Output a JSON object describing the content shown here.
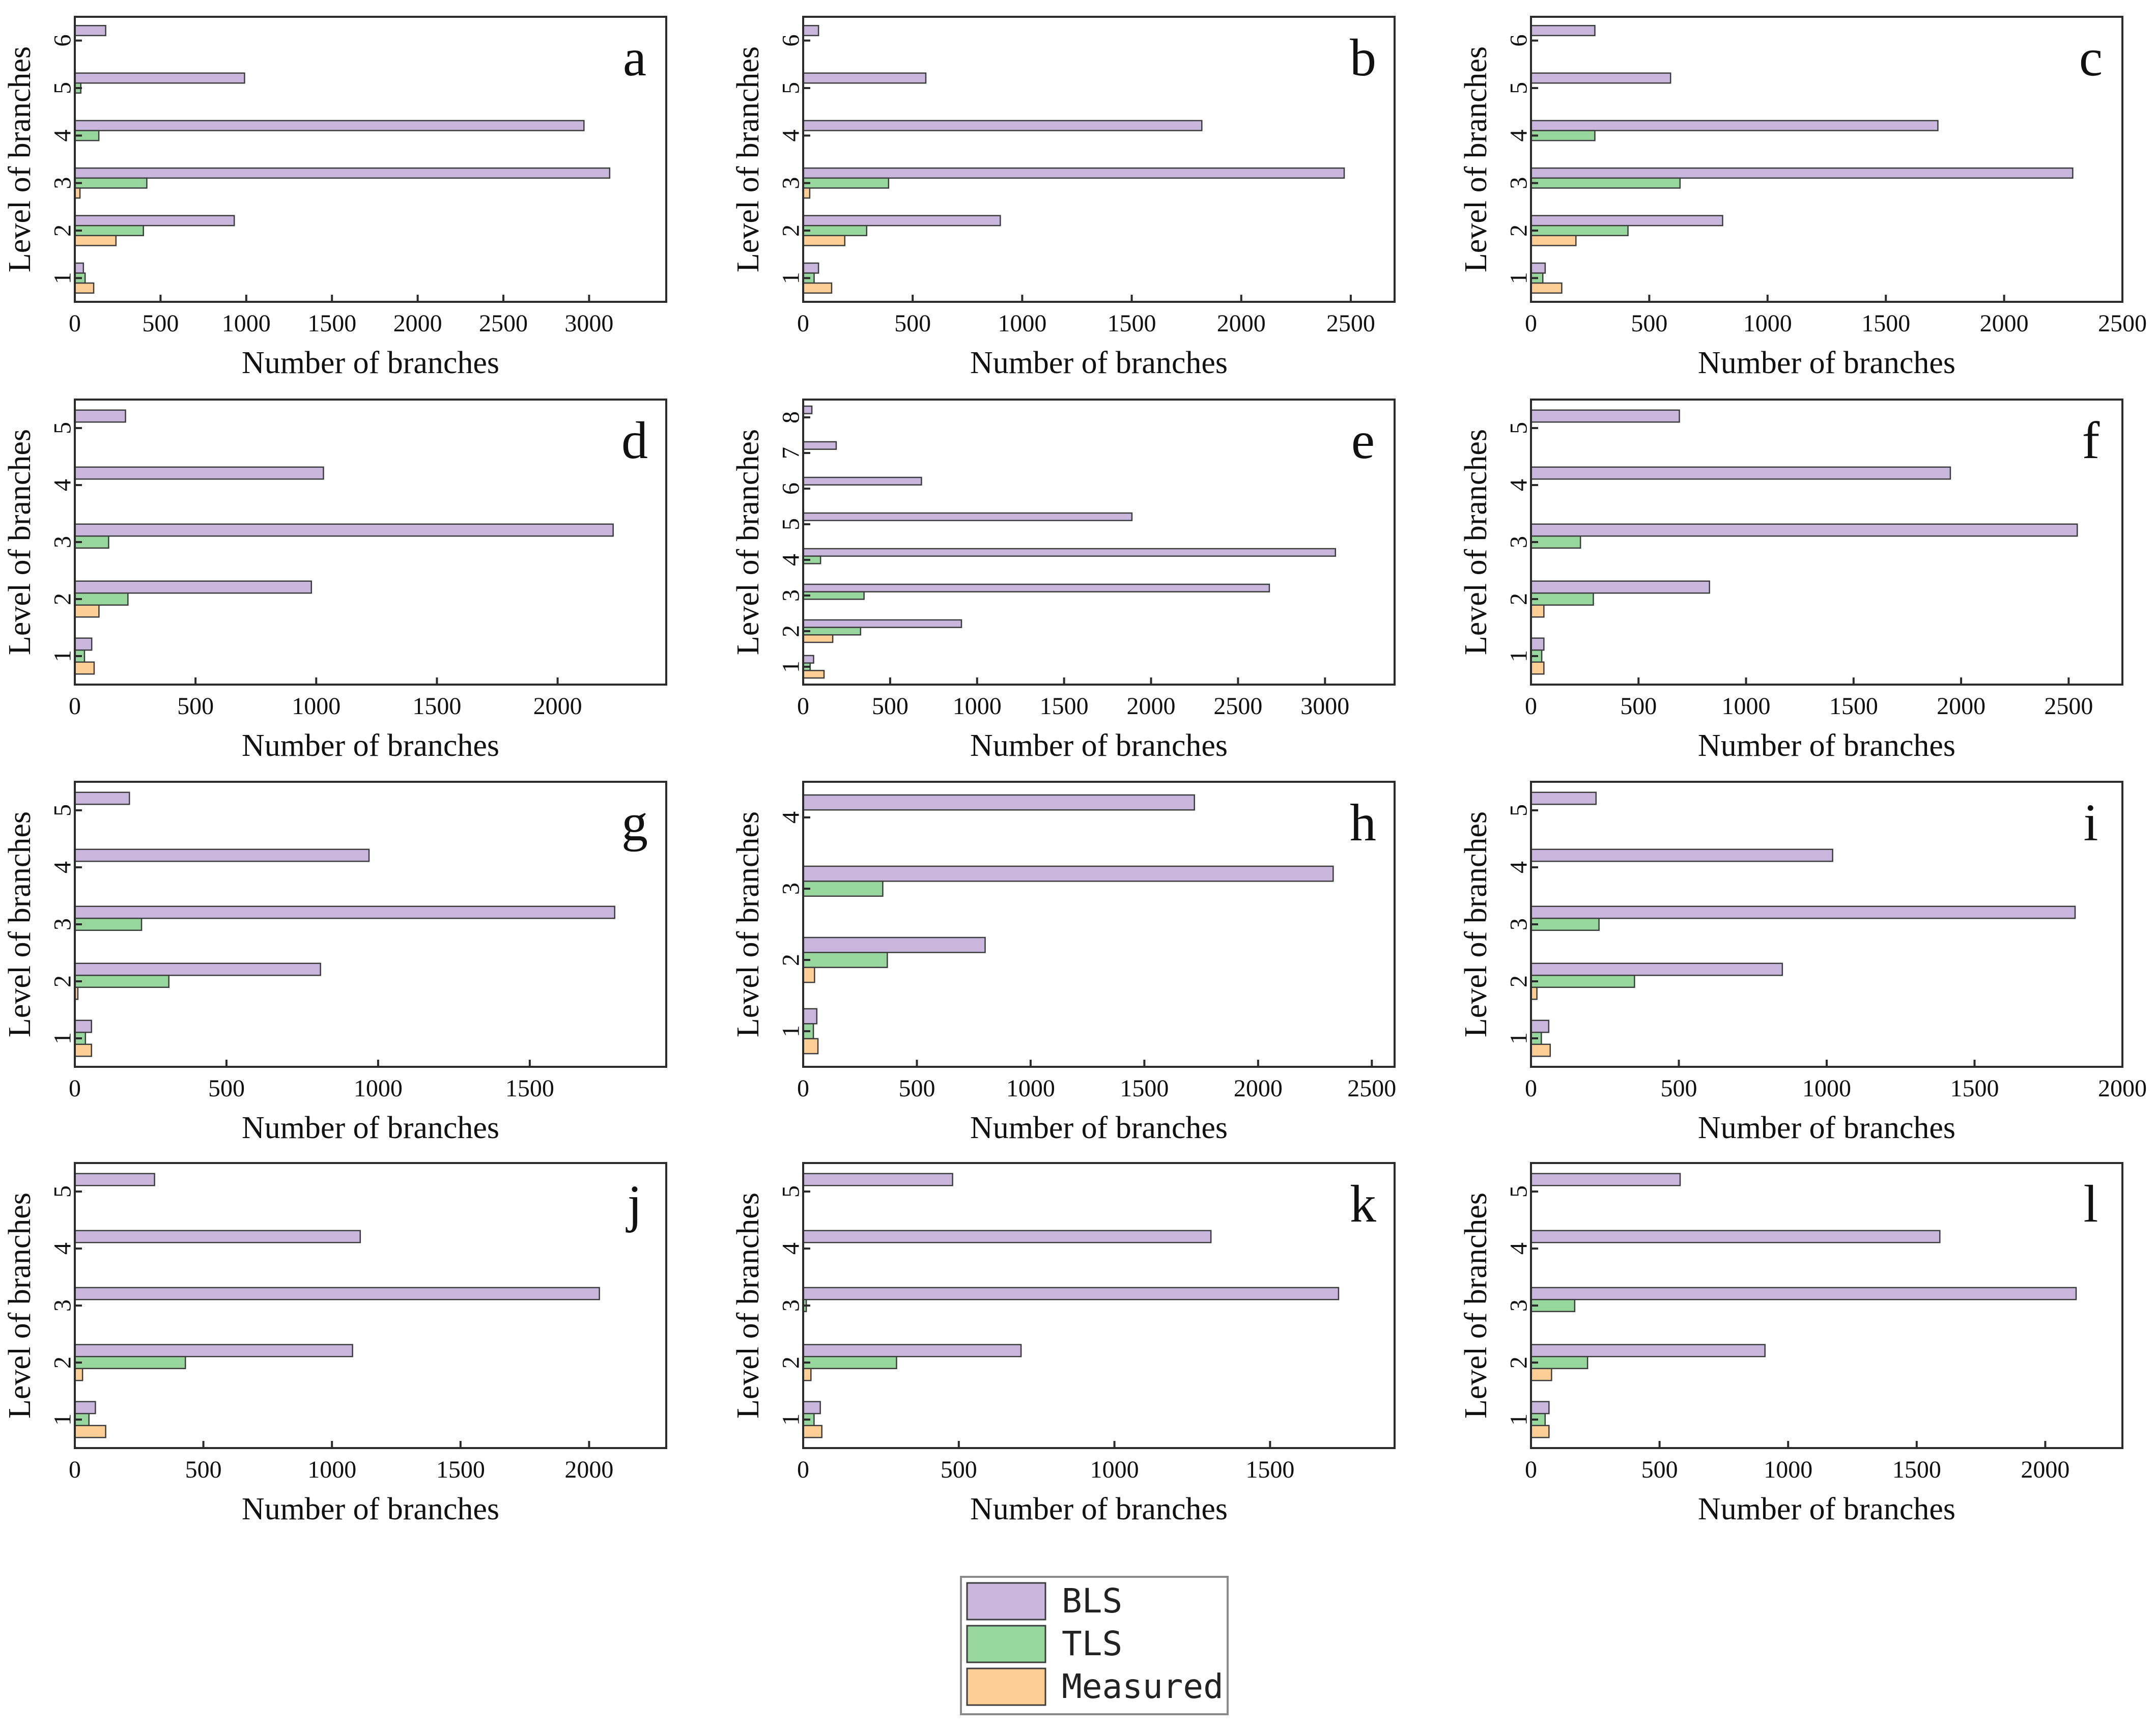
{
  "colors": {
    "BLS": "#c8b6dc",
    "TLS": "#97d69c",
    "Measured": "#fdcf96"
  },
  "legend": {
    "items": [
      "BLS",
      "TLS",
      "Measured"
    ]
  },
  "chart_data": [
    {
      "type": "bar",
      "orientation": "horizontal",
      "panel": "a",
      "title": "",
      "xlabel": "Number of branches",
      "ylabel": "Level of branches",
      "categories": [
        "1",
        "2",
        "3",
        "4",
        "5",
        "6"
      ],
      "xlim": [
        0,
        3450
      ],
      "xticks": [
        0,
        500,
        1000,
        1500,
        2000,
        2500,
        3000
      ],
      "series": [
        {
          "name": "BLS",
          "values": [
            50,
            930,
            3120,
            2970,
            990,
            180
          ]
        },
        {
          "name": "TLS",
          "values": [
            60,
            400,
            420,
            140,
            35,
            0
          ]
        },
        {
          "name": "Measured",
          "values": [
            110,
            240,
            30,
            0,
            0,
            0
          ]
        }
      ]
    },
    {
      "type": "bar",
      "orientation": "horizontal",
      "panel": "b",
      "title": "",
      "xlabel": "Number of branches",
      "ylabel": "Level of branches",
      "categories": [
        "1",
        "2",
        "3",
        "4",
        "5",
        "6"
      ],
      "xlim": [
        0,
        2700
      ],
      "xticks": [
        0,
        500,
        1000,
        1500,
        2000,
        2500
      ],
      "series": [
        {
          "name": "BLS",
          "values": [
            70,
            900,
            2470,
            1820,
            560,
            70
          ]
        },
        {
          "name": "TLS",
          "values": [
            50,
            290,
            390,
            0,
            0,
            0
          ]
        },
        {
          "name": "Measured",
          "values": [
            130,
            190,
            30,
            0,
            0,
            0
          ]
        }
      ]
    },
    {
      "type": "bar",
      "orientation": "horizontal",
      "panel": "c",
      "title": "",
      "xlabel": "Number of branches",
      "ylabel": "Level of branches",
      "categories": [
        "1",
        "2",
        "3",
        "4",
        "5",
        "6"
      ],
      "xlim": [
        0,
        2500
      ],
      "xticks": [
        0,
        500,
        1000,
        1500,
        2000,
        2500
      ],
      "series": [
        {
          "name": "BLS",
          "values": [
            60,
            810,
            2290,
            1720,
            590,
            270
          ]
        },
        {
          "name": "TLS",
          "values": [
            50,
            410,
            630,
            270,
            0,
            0
          ]
        },
        {
          "name": "Measured",
          "values": [
            130,
            190,
            0,
            0,
            0,
            0
          ]
        }
      ]
    },
    {
      "type": "bar",
      "orientation": "horizontal",
      "panel": "d",
      "title": "",
      "xlabel": "Number of branches",
      "ylabel": "Level of branches",
      "categories": [
        "1",
        "2",
        "3",
        "4",
        "5"
      ],
      "xlim": [
        0,
        2450
      ],
      "xticks": [
        0,
        500,
        1000,
        1500,
        2000
      ],
      "series": [
        {
          "name": "BLS",
          "values": [
            70,
            980,
            2230,
            1030,
            210
          ]
        },
        {
          "name": "TLS",
          "values": [
            40,
            220,
            140,
            0,
            0
          ]
        },
        {
          "name": "Measured",
          "values": [
            80,
            100,
            0,
            0,
            0
          ]
        }
      ]
    },
    {
      "type": "bar",
      "orientation": "horizontal",
      "panel": "e",
      "title": "",
      "xlabel": "Number of branches",
      "ylabel": "Level of branches",
      "categories": [
        "1",
        "2",
        "3",
        "4",
        "5",
        "6",
        "7",
        "8"
      ],
      "xlim": [
        0,
        3400
      ],
      "xticks": [
        0,
        500,
        1000,
        1500,
        2000,
        2500,
        3000
      ],
      "series": [
        {
          "name": "BLS",
          "values": [
            60,
            910,
            2680,
            3060,
            1890,
            680,
            190,
            50
          ]
        },
        {
          "name": "TLS",
          "values": [
            40,
            330,
            350,
            100,
            0,
            0,
            0,
            0
          ]
        },
        {
          "name": "Measured",
          "values": [
            120,
            170,
            0,
            0,
            0,
            0,
            0,
            0
          ]
        }
      ]
    },
    {
      "type": "bar",
      "orientation": "horizontal",
      "panel": "f",
      "title": "",
      "xlabel": "Number of branches",
      "ylabel": "Level of branches",
      "categories": [
        "1",
        "2",
        "3",
        "4",
        "5"
      ],
      "xlim": [
        0,
        2750
      ],
      "xticks": [
        0,
        500,
        1000,
        1500,
        2000,
        2500
      ],
      "series": [
        {
          "name": "BLS",
          "values": [
            60,
            830,
            2540,
            1950,
            690
          ]
        },
        {
          "name": "TLS",
          "values": [
            50,
            290,
            230,
            0,
            0
          ]
        },
        {
          "name": "Measured",
          "values": [
            60,
            60,
            0,
            0,
            0
          ]
        }
      ]
    },
    {
      "type": "bar",
      "orientation": "horizontal",
      "panel": "g",
      "title": "",
      "xlabel": "Number of branches",
      "ylabel": "Level of branches",
      "categories": [
        "1",
        "2",
        "3",
        "4",
        "5"
      ],
      "xlim": [
        0,
        1950
      ],
      "xticks": [
        0,
        500,
        1000,
        1500
      ],
      "series": [
        {
          "name": "BLS",
          "values": [
            55,
            810,
            1780,
            970,
            180
          ]
        },
        {
          "name": "TLS",
          "values": [
            35,
            310,
            220,
            0,
            0
          ]
        },
        {
          "name": "Measured",
          "values": [
            55,
            10,
            0,
            0,
            0
          ]
        }
      ]
    },
    {
      "type": "bar",
      "orientation": "horizontal",
      "panel": "h",
      "title": "",
      "xlabel": "Number of branches",
      "ylabel": "Level of branches",
      "categories": [
        "1",
        "2",
        "3",
        "4"
      ],
      "xlim": [
        0,
        2600
      ],
      "xticks": [
        0,
        500,
        1000,
        1500,
        2000,
        2500
      ],
      "series": [
        {
          "name": "BLS",
          "values": [
            60,
            800,
            2330,
            1720
          ]
        },
        {
          "name": "TLS",
          "values": [
            45,
            370,
            350,
            0
          ]
        },
        {
          "name": "Measured",
          "values": [
            65,
            50,
            0,
            0
          ]
        }
      ]
    },
    {
      "type": "bar",
      "orientation": "horizontal",
      "panel": "i",
      "title": "",
      "xlabel": "Number of branches",
      "ylabel": "Level of branches",
      "categories": [
        "1",
        "2",
        "3",
        "4",
        "5"
      ],
      "xlim": [
        0,
        2000
      ],
      "xticks": [
        0,
        500,
        1000,
        1500,
        2000
      ],
      "series": [
        {
          "name": "BLS",
          "values": [
            60,
            850,
            1840,
            1020,
            220
          ]
        },
        {
          "name": "TLS",
          "values": [
            35,
            350,
            230,
            0,
            0
          ]
        },
        {
          "name": "Measured",
          "values": [
            65,
            20,
            0,
            0,
            0
          ]
        }
      ]
    },
    {
      "type": "bar",
      "orientation": "horizontal",
      "panel": "j",
      "title": "",
      "xlabel": "Number of branches",
      "ylabel": "Level of branches",
      "categories": [
        "1",
        "2",
        "3",
        "4",
        "5"
      ],
      "xlim": [
        0,
        2300
      ],
      "xticks": [
        0,
        500,
        1000,
        1500,
        2000
      ],
      "series": [
        {
          "name": "BLS",
          "values": [
            80,
            1080,
            2040,
            1110,
            310
          ]
        },
        {
          "name": "TLS",
          "values": [
            55,
            430,
            0,
            0,
            0
          ]
        },
        {
          "name": "Measured",
          "values": [
            120,
            30,
            0,
            0,
            0
          ]
        }
      ]
    },
    {
      "type": "bar",
      "orientation": "horizontal",
      "panel": "k",
      "title": "",
      "xlabel": "Number of branches",
      "ylabel": "Level of branches",
      "categories": [
        "1",
        "2",
        "3",
        "4",
        "5"
      ],
      "xlim": [
        0,
        1900
      ],
      "xticks": [
        0,
        500,
        1000,
        1500
      ],
      "series": [
        {
          "name": "BLS",
          "values": [
            55,
            700,
            1720,
            1310,
            480
          ]
        },
        {
          "name": "TLS",
          "values": [
            35,
            300,
            10,
            0,
            0
          ]
        },
        {
          "name": "Measured",
          "values": [
            60,
            25,
            0,
            0,
            0
          ]
        }
      ]
    },
    {
      "type": "bar",
      "orientation": "horizontal",
      "panel": "l",
      "title": "",
      "xlabel": "Number of branches",
      "ylabel": "Level of branches",
      "categories": [
        "1",
        "2",
        "3",
        "4",
        "5"
      ],
      "xlim": [
        0,
        2300
      ],
      "xticks": [
        0,
        500,
        1000,
        1500,
        2000
      ],
      "series": [
        {
          "name": "BLS",
          "values": [
            70,
            910,
            2120,
            1590,
            580
          ]
        },
        {
          "name": "TLS",
          "values": [
            55,
            220,
            170,
            0,
            0
          ]
        },
        {
          "name": "Measured",
          "values": [
            70,
            80,
            0,
            0,
            0
          ]
        }
      ]
    }
  ]
}
